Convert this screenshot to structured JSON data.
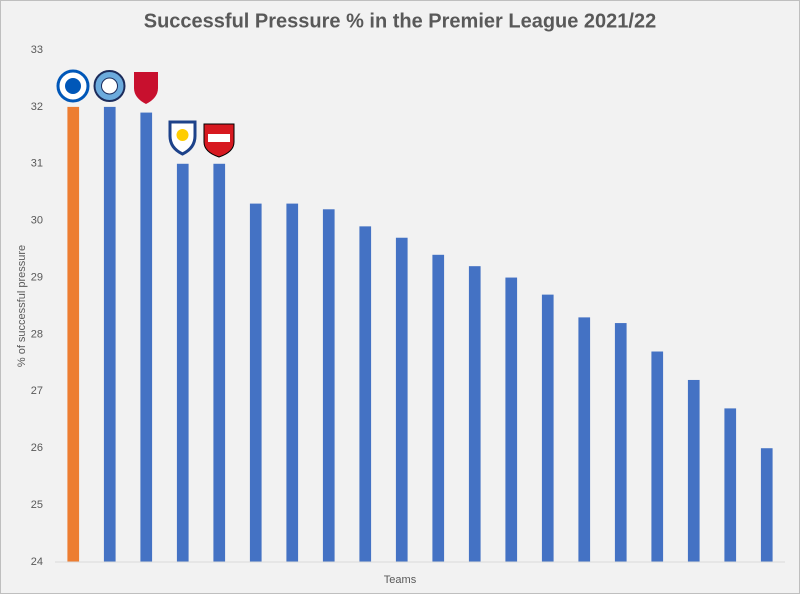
{
  "chart_data": {
    "type": "bar",
    "title": "Successful Pressure % in the Premier League 2021/22",
    "x_label": "Teams",
    "y_label": "% of successful pressure",
    "categories": [
      null,
      null,
      null,
      null,
      null,
      null,
      null,
      null,
      null,
      null,
      null,
      null,
      null,
      null,
      null,
      null,
      null,
      null,
      null,
      null
    ],
    "values": [
      32,
      32,
      31.9,
      31,
      31,
      30.3,
      30.3,
      30.2,
      29.9,
      29.7,
      29.4,
      29.2,
      29,
      28.7,
      28.3,
      28.2,
      27.7,
      27.2,
      26.7,
      26
    ],
    "colors": [
      "#ed7d31",
      "#4472c4",
      "#4472c4",
      "#4472c4",
      "#4472c4",
      "#4472c4",
      "#4472c4",
      "#4472c4",
      "#4472c4",
      "#4472c4",
      "#4472c4",
      "#4472c4",
      "#4472c4",
      "#4472c4",
      "#4472c4",
      "#4472c4",
      "#4472c4",
      "#4472c4",
      "#4472c4",
      "#4472c4"
    ],
    "ylim": [
      24,
      33
    ],
    "yticks": [
      24,
      25,
      26,
      27,
      28,
      29,
      30,
      31,
      32,
      33
    ],
    "grid": false
  }
}
